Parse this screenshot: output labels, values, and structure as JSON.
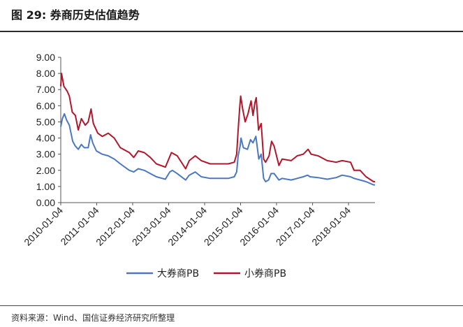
{
  "figure": {
    "title": "图 29:  券商历史估值趋势",
    "source": "资料来源：Wind、国信证券经济研究所整理"
  },
  "chart_data": {
    "type": "line",
    "title": "",
    "xlabel": "",
    "ylabel": "",
    "ylim": [
      0,
      9
    ],
    "yticks": [
      "0.00",
      "1.00",
      "2.00",
      "3.00",
      "4.00",
      "5.00",
      "6.00",
      "7.00",
      "8.00",
      "9.00"
    ],
    "xlim": [
      "2010-01-04",
      "2018-09-30"
    ],
    "xticks": [
      "2010-01-04",
      "2011-01-04",
      "2012-01-04",
      "2013-01-04",
      "2014-01-04",
      "2015-01-04",
      "2016-01-04",
      "2017-01-04",
      "2018-01-04"
    ],
    "grid": false,
    "legend": "bottom",
    "series": [
      {
        "name": "大券商PB",
        "color": "#4a78c0",
        "points": [
          [
            "2010-01-04",
            4.7
          ],
          [
            "2010-01-20",
            5.2
          ],
          [
            "2010-02-10",
            5.5
          ],
          [
            "2010-03-05",
            5.1
          ],
          [
            "2010-04-01",
            4.8
          ],
          [
            "2010-05-05",
            3.8
          ],
          [
            "2010-06-01",
            3.5
          ],
          [
            "2010-07-01",
            3.3
          ],
          [
            "2010-08-01",
            3.6
          ],
          [
            "2010-09-01",
            3.4
          ],
          [
            "2010-10-10",
            3.4
          ],
          [
            "2010-11-03",
            4.2
          ],
          [
            "2010-11-25",
            3.7
          ],
          [
            "2011-01-01",
            3.2
          ],
          [
            "2011-03-01",
            3.0
          ],
          [
            "2011-05-01",
            2.9
          ],
          [
            "2011-07-01",
            2.7
          ],
          [
            "2011-09-01",
            2.4
          ],
          [
            "2011-12-01",
            2.0
          ],
          [
            "2012-01-15",
            1.9
          ],
          [
            "2012-03-01",
            2.1
          ],
          [
            "2012-05-01",
            2.0
          ],
          [
            "2012-07-01",
            1.8
          ],
          [
            "2012-09-01",
            1.6
          ],
          [
            "2012-12-01",
            1.45
          ],
          [
            "2013-01-15",
            1.9
          ],
          [
            "2013-02-10",
            2.0
          ],
          [
            "2013-04-01",
            1.8
          ],
          [
            "2013-06-25",
            1.4
          ],
          [
            "2013-08-01",
            1.7
          ],
          [
            "2013-10-01",
            1.9
          ],
          [
            "2013-12-01",
            1.6
          ],
          [
            "2014-03-01",
            1.5
          ],
          [
            "2014-06-01",
            1.5
          ],
          [
            "2014-09-01",
            1.5
          ],
          [
            "2014-11-01",
            1.6
          ],
          [
            "2014-11-25",
            1.9
          ],
          [
            "2014-12-10",
            2.9
          ],
          [
            "2014-12-30",
            3.5
          ],
          [
            "2015-01-08",
            4.0
          ],
          [
            "2015-02-01",
            3.4
          ],
          [
            "2015-03-15",
            3.3
          ],
          [
            "2015-04-15",
            3.9
          ],
          [
            "2015-05-10",
            3.7
          ],
          [
            "2015-06-08",
            4.1
          ],
          [
            "2015-07-08",
            2.7
          ],
          [
            "2015-08-01",
            3.0
          ],
          [
            "2015-08-26",
            1.5
          ],
          [
            "2015-09-15",
            1.3
          ],
          [
            "2015-10-15",
            1.4
          ],
          [
            "2015-11-10",
            1.8
          ],
          [
            "2015-12-10",
            1.8
          ],
          [
            "2016-01-28",
            1.4
          ],
          [
            "2016-03-01",
            1.5
          ],
          [
            "2016-06-01",
            1.4
          ],
          [
            "2016-08-01",
            1.5
          ],
          [
            "2016-10-01",
            1.6
          ],
          [
            "2016-11-15",
            1.7
          ],
          [
            "2016-12-10",
            1.6
          ],
          [
            "2017-03-01",
            1.55
          ],
          [
            "2017-06-01",
            1.45
          ],
          [
            "2017-09-01",
            1.55
          ],
          [
            "2017-11-01",
            1.7
          ],
          [
            "2018-01-25",
            1.6
          ],
          [
            "2018-03-01",
            1.5
          ],
          [
            "2018-05-01",
            1.4
          ],
          [
            "2018-07-01",
            1.3
          ],
          [
            "2018-09-15",
            1.1
          ],
          [
            "2018-09-30",
            1.1
          ]
        ]
      },
      {
        "name": "小券商PB",
        "color": "#b3152a",
        "points": [
          [
            "2010-01-04",
            7.2
          ],
          [
            "2010-01-12",
            8.0
          ],
          [
            "2010-02-05",
            7.2
          ],
          [
            "2010-03-10",
            6.9
          ],
          [
            "2010-04-01",
            6.6
          ],
          [
            "2010-05-01",
            5.6
          ],
          [
            "2010-06-01",
            5.4
          ],
          [
            "2010-07-01",
            4.5
          ],
          [
            "2010-08-01",
            5.2
          ],
          [
            "2010-09-10",
            4.8
          ],
          [
            "2010-10-10",
            5.0
          ],
          [
            "2010-11-08",
            5.8
          ],
          [
            "2010-12-01",
            4.9
          ],
          [
            "2011-01-15",
            4.3
          ],
          [
            "2011-03-01",
            4.1
          ],
          [
            "2011-05-01",
            4.3
          ],
          [
            "2011-07-01",
            4.0
          ],
          [
            "2011-09-01",
            3.4
          ],
          [
            "2011-12-01",
            3.1
          ],
          [
            "2012-01-15",
            2.8
          ],
          [
            "2012-03-01",
            3.2
          ],
          [
            "2012-05-01",
            3.1
          ],
          [
            "2012-07-01",
            2.8
          ],
          [
            "2012-09-01",
            2.4
          ],
          [
            "2012-12-01",
            2.2
          ],
          [
            "2013-02-01",
            3.1
          ],
          [
            "2013-04-01",
            2.9
          ],
          [
            "2013-06-25",
            2.1
          ],
          [
            "2013-08-01",
            2.6
          ],
          [
            "2013-10-01",
            2.9
          ],
          [
            "2013-12-01",
            2.6
          ],
          [
            "2014-03-01",
            2.4
          ],
          [
            "2014-06-01",
            2.4
          ],
          [
            "2014-09-01",
            2.4
          ],
          [
            "2014-11-01",
            2.5
          ],
          [
            "2014-11-25",
            3.0
          ],
          [
            "2014-12-10",
            4.5
          ],
          [
            "2014-12-25",
            5.8
          ],
          [
            "2015-01-05",
            6.6
          ],
          [
            "2015-01-25",
            5.8
          ],
          [
            "2015-02-20",
            5.0
          ],
          [
            "2015-03-20",
            5.5
          ],
          [
            "2015-04-20",
            6.3
          ],
          [
            "2015-05-10",
            5.4
          ],
          [
            "2015-05-30",
            6.2
          ],
          [
            "2015-06-12",
            6.5
          ],
          [
            "2015-07-05",
            4.5
          ],
          [
            "2015-08-01",
            4.9
          ],
          [
            "2015-08-26",
            2.7
          ],
          [
            "2015-09-15",
            2.5
          ],
          [
            "2015-10-20",
            2.9
          ],
          [
            "2015-11-15",
            3.8
          ],
          [
            "2015-12-10",
            3.5
          ],
          [
            "2016-01-28",
            2.3
          ],
          [
            "2016-03-01",
            2.7
          ],
          [
            "2016-06-01",
            2.6
          ],
          [
            "2016-08-01",
            2.9
          ],
          [
            "2016-10-01",
            3.0
          ],
          [
            "2016-11-20",
            3.3
          ],
          [
            "2016-12-20",
            3.0
          ],
          [
            "2017-03-01",
            2.9
          ],
          [
            "2017-06-01",
            2.6
          ],
          [
            "2017-09-01",
            2.5
          ],
          [
            "2017-11-01",
            2.6
          ],
          [
            "2018-01-25",
            2.5
          ],
          [
            "2018-03-01",
            2.0
          ],
          [
            "2018-05-01",
            2.0
          ],
          [
            "2018-07-01",
            1.6
          ],
          [
            "2018-09-15",
            1.3
          ],
          [
            "2018-09-30",
            1.3
          ]
        ]
      }
    ]
  }
}
